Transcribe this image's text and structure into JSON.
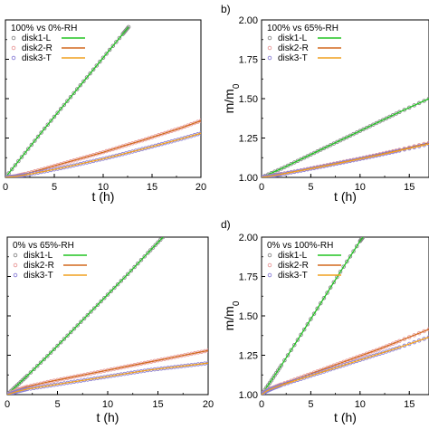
{
  "chart_data": [
    {
      "type": "line",
      "panel_label": "",
      "legend_title": "100% vs 0%-RH",
      "legend_position": "top-left",
      "xlabel": "t (h)",
      "ylabel": "",
      "xlim": [
        0,
        20
      ],
      "ylim": [
        1.0,
        2.0
      ],
      "xticks": [
        "0",
        "5",
        "10",
        "15",
        "20"
      ],
      "yticks": [],
      "series": [
        {
          "name": "disk1-L",
          "color": "#22c322",
          "marker_color": "#888888",
          "x": [
            0,
            2,
            4,
            6,
            8,
            10,
            12,
            12.6
          ],
          "y": [
            1.0,
            1.155,
            1.31,
            1.46,
            1.61,
            1.76,
            1.91,
            1.955
          ]
        },
        {
          "name": "disk2-R",
          "color": "#d2691e",
          "marker_color": "#e89a9a",
          "x": [
            0,
            1,
            2,
            4,
            6,
            8,
            10,
            12,
            14,
            16,
            18,
            20
          ],
          "y": [
            1.0,
            1.008,
            1.022,
            1.055,
            1.09,
            1.125,
            1.16,
            1.198,
            1.235,
            1.275,
            1.315,
            1.36
          ]
        },
        {
          "name": "disk3-T",
          "color": "#f0a020",
          "marker_color": "#8a7fd6",
          "x": [
            0,
            1,
            2,
            4,
            6,
            8,
            10,
            12,
            14,
            16,
            18,
            20
          ],
          "y": [
            1.0,
            1.006,
            1.015,
            1.038,
            1.063,
            1.09,
            1.118,
            1.148,
            1.18,
            1.212,
            1.245,
            1.28
          ]
        }
      ]
    },
    {
      "type": "line",
      "panel_label": "b)",
      "legend_title": "100% vs 65%-RH",
      "legend_position": "top-left",
      "xlabel": "t (h)",
      "ylabel": "m/m0",
      "xlim": [
        0,
        17
      ],
      "ylim": [
        1.0,
        2.0
      ],
      "xticks": [
        "0",
        "5",
        "10",
        "15"
      ],
      "yticks": [
        "1.00",
        "1.25",
        "1.50",
        "1.75",
        "2.00"
      ],
      "series": [
        {
          "name": "disk1-L",
          "color": "#22c322",
          "marker_color": "#888888",
          "x": [
            0,
            2,
            4,
            6,
            8,
            10,
            12,
            14,
            17
          ],
          "y": [
            1.0,
            1.055,
            1.115,
            1.175,
            1.235,
            1.295,
            1.355,
            1.415,
            1.5
          ]
        },
        {
          "name": "disk2-R",
          "color": "#d2691e",
          "marker_color": "#e89a9a",
          "x": [
            0,
            1,
            2,
            4,
            6,
            8,
            10,
            12,
            14,
            17
          ],
          "y": [
            1.0,
            1.01,
            1.022,
            1.045,
            1.07,
            1.095,
            1.12,
            1.147,
            1.175,
            1.22
          ]
        },
        {
          "name": "disk3-T",
          "color": "#f0a020",
          "marker_color": "#8a7fd6",
          "x": [
            0,
            1,
            2,
            4,
            6,
            8,
            10,
            12,
            14,
            17
          ],
          "y": [
            1.0,
            1.009,
            1.02,
            1.043,
            1.067,
            1.092,
            1.117,
            1.143,
            1.17,
            1.212
          ]
        }
      ]
    },
    {
      "type": "line",
      "panel_label": "",
      "legend_title": "0% vs 65%-RH",
      "legend_position": "top-left",
      "xlabel": "t (h)",
      "ylabel": "",
      "xlim": [
        0,
        20
      ],
      "ylim": [
        1.0,
        2.0
      ],
      "xticks": [
        "0",
        "5",
        "10",
        "15",
        "20"
      ],
      "yticks": [],
      "series": [
        {
          "name": "disk1-L",
          "color": "#22c322",
          "marker_color": "#888888",
          "x": [
            0,
            1,
            2,
            4,
            6,
            8,
            10,
            12,
            14,
            15.5
          ],
          "y": [
            1.0,
            1.06,
            1.12,
            1.245,
            1.375,
            1.505,
            1.635,
            1.765,
            1.9,
            2.0
          ]
        },
        {
          "name": "disk2-R",
          "color": "#d2691e",
          "marker_color": "#e89a9a",
          "x": [
            0,
            1,
            2,
            4,
            6,
            8,
            10,
            12,
            14,
            16,
            18,
            20
          ],
          "y": [
            1.0,
            1.03,
            1.05,
            1.08,
            1.105,
            1.13,
            1.155,
            1.18,
            1.205,
            1.23,
            1.255,
            1.28
          ]
        },
        {
          "name": "disk3-T",
          "color": "#f0a020",
          "marker_color": "#8a7fd6",
          "x": [
            0,
            1,
            2,
            4,
            6,
            8,
            10,
            12,
            14,
            16,
            18,
            20
          ],
          "y": [
            1.0,
            1.02,
            1.035,
            1.055,
            1.075,
            1.095,
            1.115,
            1.135,
            1.155,
            1.17,
            1.185,
            1.2
          ]
        }
      ]
    },
    {
      "type": "line",
      "panel_label": "d)",
      "legend_title": "0% vs 100%-RH",
      "legend_position": "top-left",
      "xlabel": "t (h)",
      "ylabel": "m/m0",
      "xlim": [
        0,
        17
      ],
      "ylim": [
        1.0,
        2.0
      ],
      "xticks": [
        "0",
        "5",
        "10",
        "15"
      ],
      "yticks": [
        "1.00",
        "1.25",
        "1.50",
        "1.75",
        "2.00"
      ],
      "series": [
        {
          "name": "disk1-L",
          "color": "#22c322",
          "marker_color": "#888888",
          "x": [
            0,
            1,
            2,
            4,
            6,
            8,
            10,
            10.3
          ],
          "y": [
            1.0,
            1.09,
            1.185,
            1.38,
            1.58,
            1.78,
            1.975,
            2.0
          ]
        },
        {
          "name": "disk2-R",
          "color": "#d2691e",
          "marker_color": "#e89a9a",
          "x": [
            0,
            0.5,
            1,
            2,
            4,
            6,
            8,
            10,
            12,
            14,
            17
          ],
          "y": [
            1.0,
            1.025,
            1.04,
            1.065,
            1.11,
            1.155,
            1.2,
            1.245,
            1.29,
            1.34,
            1.415
          ]
        },
        {
          "name": "disk3-T",
          "color": "#f0a020",
          "marker_color": "#8a7fd6",
          "x": [
            0,
            0.5,
            1,
            2,
            4,
            6,
            8,
            10,
            12,
            14,
            17
          ],
          "y": [
            1.0,
            1.022,
            1.036,
            1.06,
            1.1,
            1.14,
            1.18,
            1.22,
            1.26,
            1.3,
            1.365
          ]
        }
      ]
    }
  ]
}
